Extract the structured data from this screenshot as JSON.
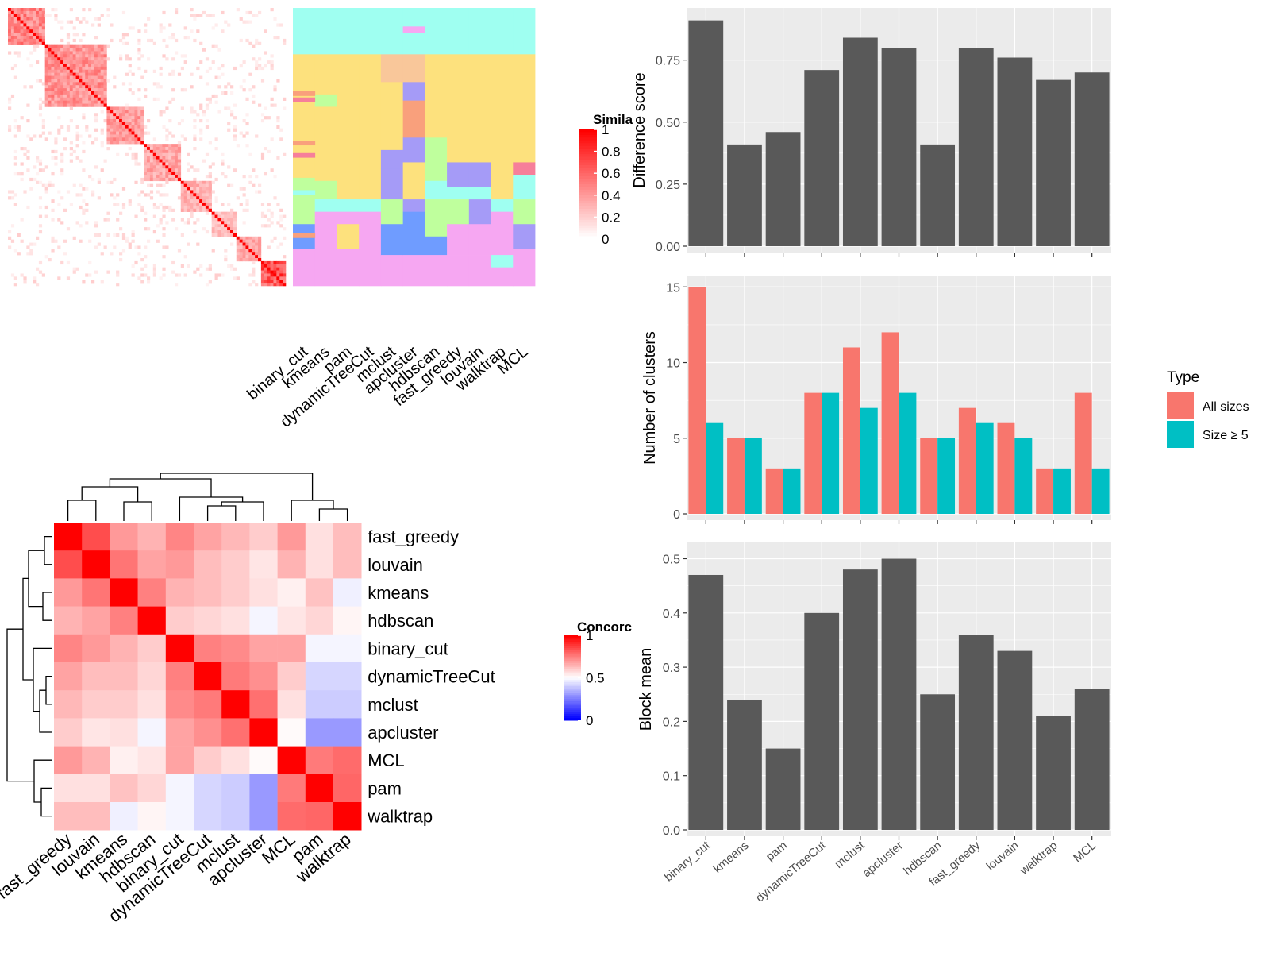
{
  "methods": [
    "binary_cut",
    "kmeans",
    "pam",
    "dynamicTreeCut",
    "mclust",
    "apcluster",
    "hdbscan",
    "fast_greedy",
    "louvain",
    "walktrap",
    "MCL"
  ],
  "chart_data": [
    {
      "id": "similarity_heatmap",
      "type": "heatmap",
      "legend_title": "Simila",
      "legend_ticks": [
        "1",
        "0.8",
        "0.6",
        "0.4",
        "0.2",
        "0"
      ],
      "colors": {
        "low": "#ffffff",
        "high": "#ff0000"
      },
      "blocks": [
        {
          "rows": [
            0,
            12
          ],
          "value": 0.55
        },
        {
          "rows": [
            12,
            32
          ],
          "value": 0.5
        },
        {
          "rows": [
            32,
            44
          ],
          "value": 0.45
        },
        {
          "rows": [
            44,
            56
          ],
          "value": 0.4
        },
        {
          "rows": [
            56,
            66
          ],
          "value": 0.35
        },
        {
          "rows": [
            66,
            74
          ],
          "value": 0.3
        },
        {
          "rows": [
            74,
            82
          ],
          "value": 0.4
        },
        {
          "rows": [
            82,
            90
          ],
          "value": 0.8
        }
      ],
      "class_columns": [
        "binary_cut",
        "kmeans",
        "pam",
        "dynamicTreeCut",
        "mclust",
        "apcluster",
        "hdbscan",
        "fast_greedy",
        "louvain",
        "walktrap",
        "MCL"
      ],
      "class_palette": [
        "#9ffff1",
        "#fde17d",
        "#bfff9d",
        "#a59bf7",
        "#f6a7f2",
        "#6f9cff",
        "#f9c79a",
        "#f9a07c",
        "#f67f9a"
      ]
    },
    {
      "id": "concordance_heatmap",
      "type": "heatmap",
      "legend_title": "Concorc",
      "legend_ticks": [
        "1",
        "0.5",
        "0"
      ],
      "colors": {
        "low": "#0000ff",
        "mid": "#ffffff",
        "high": "#ff0000"
      },
      "columns": [
        "fast_greedy",
        "louvain",
        "kmeans",
        "hdbscan",
        "binary_cut",
        "dynamicTreeCut",
        "mclust",
        "apcluster",
        "MCL",
        "pam",
        "walktrap"
      ],
      "rows": [
        "fast_greedy",
        "louvain",
        "kmeans",
        "hdbscan",
        "binary_cut",
        "dynamicTreeCut",
        "mclust",
        "apcluster",
        "MCL",
        "pam",
        "walktrap"
      ],
      "values": [
        [
          1.0,
          0.85,
          0.7,
          0.65,
          0.74,
          0.68,
          0.64,
          0.6,
          0.7,
          0.56,
          0.63
        ],
        [
          0.85,
          1.0,
          0.77,
          0.68,
          0.7,
          0.63,
          0.6,
          0.55,
          0.65,
          0.56,
          0.63
        ],
        [
          0.7,
          0.77,
          1.0,
          0.75,
          0.65,
          0.63,
          0.6,
          0.56,
          0.53,
          0.62,
          0.47
        ],
        [
          0.65,
          0.68,
          0.75,
          1.0,
          0.6,
          0.58,
          0.56,
          0.48,
          0.55,
          0.58,
          0.52
        ],
        [
          0.74,
          0.7,
          0.65,
          0.6,
          1.0,
          0.75,
          0.73,
          0.68,
          0.68,
          0.48,
          0.48
        ],
        [
          0.68,
          0.63,
          0.63,
          0.58,
          0.75,
          1.0,
          0.76,
          0.72,
          0.6,
          0.42,
          0.42
        ],
        [
          0.64,
          0.6,
          0.6,
          0.56,
          0.73,
          0.76,
          1.0,
          0.78,
          0.56,
          0.4,
          0.4
        ],
        [
          0.6,
          0.55,
          0.56,
          0.48,
          0.68,
          0.72,
          0.78,
          1.0,
          0.51,
          0.3,
          0.3
        ],
        [
          0.7,
          0.65,
          0.53,
          0.55,
          0.68,
          0.6,
          0.56,
          0.51,
          1.0,
          0.76,
          0.79
        ],
        [
          0.56,
          0.56,
          0.62,
          0.58,
          0.48,
          0.42,
          0.4,
          0.3,
          0.76,
          1.0,
          0.8
        ],
        [
          0.63,
          0.63,
          0.47,
          0.52,
          0.48,
          0.42,
          0.4,
          0.3,
          0.79,
          0.8,
          1.0
        ]
      ]
    },
    {
      "id": "difference_score",
      "type": "bar",
      "categories": [
        "binary_cut",
        "kmeans",
        "pam",
        "dynamicTreeCut",
        "mclust",
        "apcluster",
        "hdbscan",
        "fast_greedy",
        "louvain",
        "walktrap",
        "MCL"
      ],
      "values": [
        0.91,
        0.41,
        0.46,
        0.71,
        0.84,
        0.8,
        0.41,
        0.8,
        0.76,
        0.67,
        0.7
      ],
      "ylabel": "Difference score",
      "ylim": [
        0,
        0.96
      ],
      "yticks": [
        0,
        0.25,
        0.5,
        0.75
      ],
      "ytick_labels": [
        "0.00",
        "0.25",
        "0.50",
        "0.75"
      ],
      "color": "#595959"
    },
    {
      "id": "number_of_clusters",
      "type": "bar",
      "categories": [
        "binary_cut",
        "kmeans",
        "pam",
        "dynamicTreeCut",
        "mclust",
        "apcluster",
        "hdbscan",
        "fast_greedy",
        "louvain",
        "walktrap",
        "MCL"
      ],
      "series": [
        {
          "name": "All sizes",
          "values": [
            15,
            5,
            3,
            8,
            11,
            12,
            5,
            7,
            6,
            3,
            8
          ],
          "color": "#f8766d"
        },
        {
          "name": "Size ≥ 5",
          "values": [
            6,
            5,
            3,
            8,
            7,
            8,
            5,
            6,
            5,
            3,
            3
          ],
          "color": "#00bfc4"
        }
      ],
      "ylabel": "Number of clusters",
      "ylim": [
        0,
        15.75
      ],
      "yticks": [
        0,
        5,
        10,
        15
      ],
      "legend_title": "Type",
      "legend_position": "right"
    },
    {
      "id": "block_mean",
      "type": "bar",
      "categories": [
        "binary_cut",
        "kmeans",
        "pam",
        "dynamicTreeCut",
        "mclust",
        "apcluster",
        "hdbscan",
        "fast_greedy",
        "louvain",
        "walktrap",
        "MCL"
      ],
      "values": [
        0.47,
        0.24,
        0.15,
        0.4,
        0.48,
        0.5,
        0.25,
        0.36,
        0.33,
        0.21,
        0.26
      ],
      "ylabel": "Block mean",
      "ylim": [
        0,
        0.53
      ],
      "yticks": [
        0,
        0.1,
        0.2,
        0.3,
        0.4,
        0.5
      ],
      "ytick_labels": [
        "0.0",
        "0.1",
        "0.2",
        "0.3",
        "0.4",
        "0.5"
      ],
      "color": "#595959"
    }
  ]
}
